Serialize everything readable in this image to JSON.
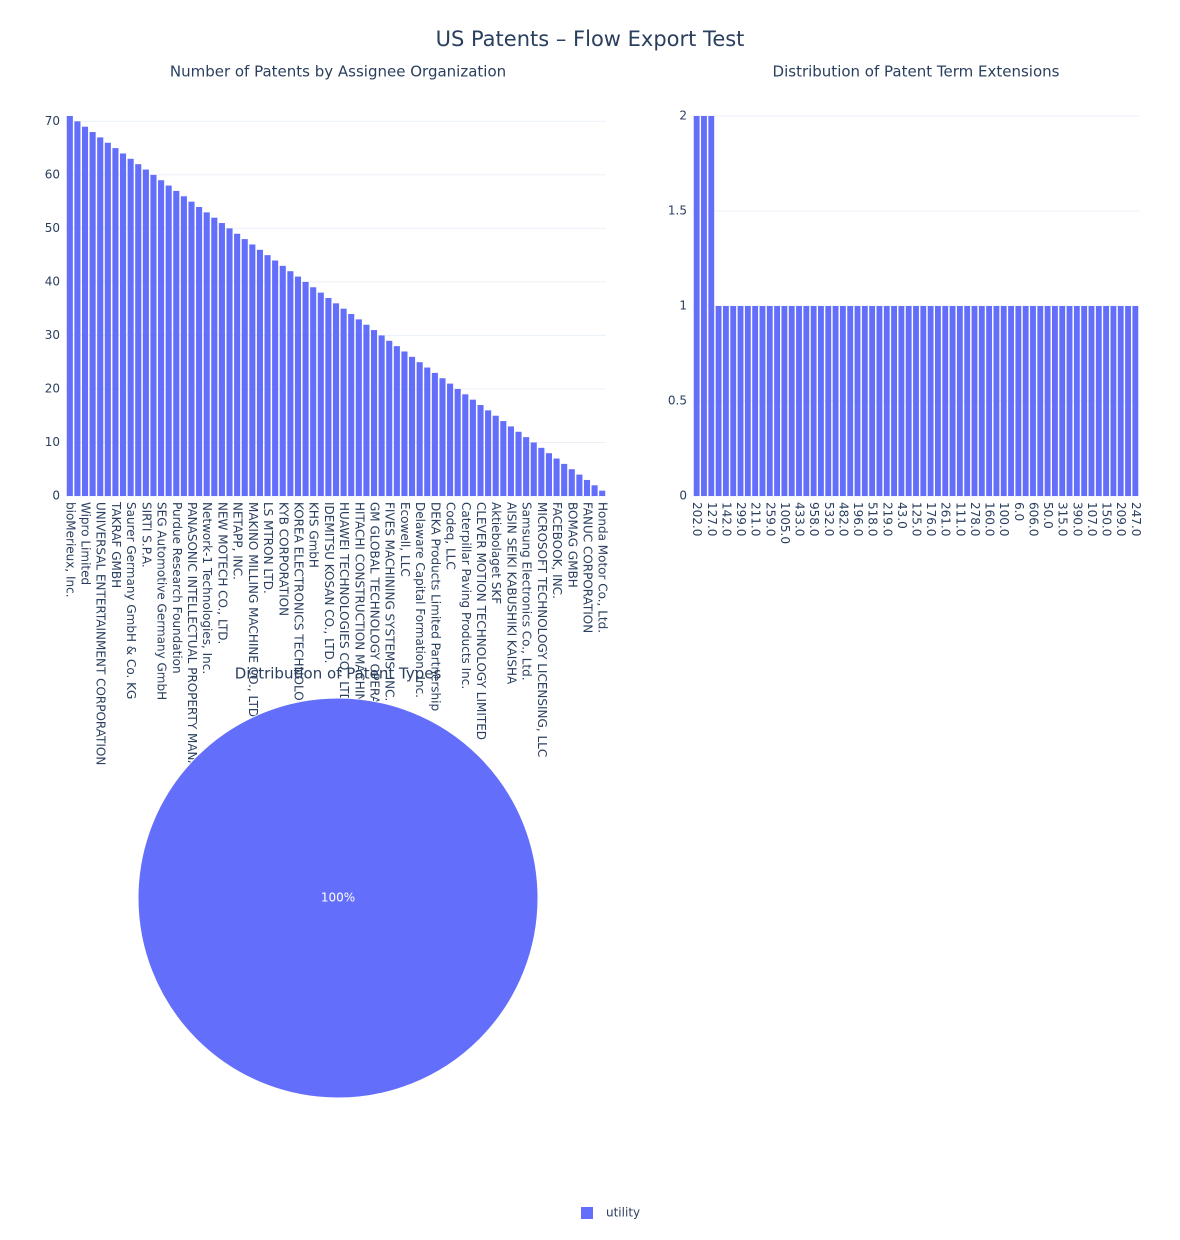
{
  "title": "US Patents – Flow Export Test",
  "chart_data": [
    {
      "type": "bar",
      "title": "Number of Patents by Assignee Organization",
      "color": "#636efa",
      "categories": [
        "bioMerieux, Inc.",
        null,
        "Wipro Limited",
        null,
        "UNIVERSAL ENTERTAINMENT CORPORATION",
        null,
        "TAKRAF GMBH",
        null,
        "Saurer Germany GmbH & Co. KG",
        null,
        "SIRTI S.P.A.",
        null,
        "SEG Automotive Germany GmbH",
        null,
        "Purdue Research Foundation",
        null,
        "PANASONIC INTELLECTUAL PROPERTY MANAG",
        null,
        "Network-1 Technologies, Inc.",
        null,
        "NEW MOTECH CO., LTD.",
        null,
        "NETAPP, INC.",
        null,
        "MAKINO MILLING MACHINE CO., LTD.",
        null,
        "LS MTRON LTD.",
        null,
        "KYB CORPORATION",
        null,
        "KOREA ELECTRONICS TECHNOLOG",
        null,
        "KHS GmbH",
        null,
        "IDEMITSU KOSAN CO., LTD.",
        null,
        "HUAWEI TECHNOLOGIES CO., LTD.",
        null,
        "HITACHI CONSTRUCTION MACHINE",
        null,
        "GM GLOBAL TECHNOLOGY OPERAT",
        null,
        "FIVES MACHINING SYSTEMS, INC.",
        null,
        "Ecowell, LLC",
        null,
        "Delaware Capital Formation, Inc.",
        null,
        "DEKA Products Limited Partnership",
        null,
        "Codeq, LLC",
        null,
        "Caterpillar Paving Products Inc.",
        null,
        "CLEVER MOTION TECHNOLOGY LIMITED",
        null,
        "Aktiebolaget SKF",
        null,
        "AISIN SEIKI KABUSHIKI KAISHA",
        null,
        "Samsung Electronics Co., Ltd.",
        null,
        "MICROSOFT TECHNOLOGY LICENSING, LLC",
        null,
        "FACEBOOK, INC.",
        null,
        "BOMAG GMBH",
        null,
        "FANUC CORPORATION",
        null,
        "Honda Motor Co., Ltd."
      ],
      "values": [
        71,
        70,
        69,
        68,
        67,
        66,
        65,
        64,
        63,
        62,
        61,
        60,
        59,
        58,
        57,
        56,
        55,
        54,
        53,
        52,
        51,
        50,
        49,
        48,
        47,
        46,
        45,
        44,
        43,
        42,
        41,
        40,
        39,
        38,
        37,
        36,
        35,
        34,
        33,
        32,
        31,
        30,
        29,
        28,
        27,
        26,
        25,
        24,
        23,
        22,
        21,
        20,
        19,
        18,
        17,
        16,
        15,
        14,
        13,
        12,
        11,
        10,
        9,
        8,
        7,
        6,
        5,
        4,
        3,
        2,
        1
      ],
      "ylim": [
        0,
        71
      ],
      "yticks": [
        0,
        10,
        20,
        30,
        40,
        50,
        60,
        70
      ],
      "grid": true
    },
    {
      "type": "bar",
      "title": "Distribution of Patent Term Extensions",
      "color": "#636efa",
      "categories": [
        "202.0",
        null,
        "127.0",
        null,
        "142.0",
        null,
        "299.0",
        null,
        "211.0",
        null,
        "259.0",
        null,
        "1005.0",
        null,
        "433.0",
        null,
        "958.0",
        null,
        "532.0",
        null,
        "482.0",
        null,
        "196.0",
        null,
        "518.0",
        null,
        "219.0",
        null,
        "43.0",
        null,
        "125.0",
        null,
        "176.0",
        null,
        "261.0",
        null,
        "111.0",
        null,
        "278.0",
        null,
        "160.0",
        null,
        "100.0",
        null,
        "6.0",
        null,
        "606.0",
        null,
        "50.0",
        null,
        "315.0",
        null,
        "390.0",
        null,
        "107.0",
        null,
        "150.0",
        null,
        "209.0",
        null,
        "247.0"
      ],
      "values": [
        2,
        2,
        2,
        1,
        1,
        1,
        1,
        1,
        1,
        1,
        1,
        1,
        1,
        1,
        1,
        1,
        1,
        1,
        1,
        1,
        1,
        1,
        1,
        1,
        1,
        1,
        1,
        1,
        1,
        1,
        1,
        1,
        1,
        1,
        1,
        1,
        1,
        1,
        1,
        1,
        1,
        1,
        1,
        1,
        1,
        1,
        1,
        1,
        1,
        1,
        1,
        1,
        1,
        1,
        1,
        1,
        1,
        1,
        1,
        1,
        1
      ],
      "ylim": [
        0,
        2
      ],
      "yticks": [
        0,
        0.5,
        1,
        1.5,
        2
      ],
      "grid": true
    },
    {
      "type": "pie",
      "title": "Distribution of Patent Types",
      "labels": [
        "utility"
      ],
      "values": [
        100
      ],
      "value_labels": [
        "100%"
      ],
      "colors": [
        "#636efa"
      ],
      "legend": "bottom"
    }
  ]
}
